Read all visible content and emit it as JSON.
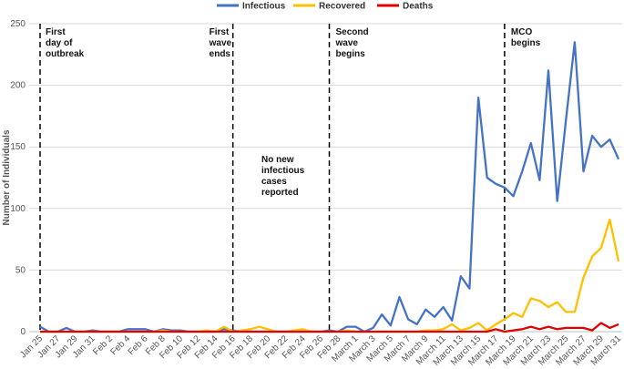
{
  "chart_data": {
    "type": "line",
    "ylabel": "Number of Individuals",
    "categories": [
      "Jan 25",
      null,
      "Jan 27",
      null,
      "Jan 29",
      null,
      "Jan 31",
      null,
      "Feb 2",
      null,
      "Feb 4",
      null,
      "Feb 6",
      null,
      "Feb 8",
      null,
      "Feb 10",
      null,
      "Feb 12",
      null,
      "Feb 14",
      null,
      "Feb 16",
      null,
      "Feb 18",
      null,
      "Feb 20",
      null,
      "Feb 22",
      null,
      "Feb 24",
      null,
      "Feb 26",
      null,
      "Feb 28",
      null,
      "March 1",
      null,
      "March 3",
      null,
      "March 5",
      null,
      "March 7",
      null,
      "March 9",
      null,
      "March 11",
      null,
      "March 13",
      null,
      "March 15",
      null,
      "March 17",
      null,
      "March 19",
      null,
      "March 21",
      null,
      "March 23",
      null,
      "March 25",
      null,
      "March 27",
      null,
      "March 29",
      null,
      "March 31"
    ],
    "series": [
      {
        "name": "Infectious",
        "color": "#4472c4",
        "values": [
          4,
          0,
          0,
          3,
          0,
          0,
          1,
          0,
          0,
          0,
          2,
          2,
          2,
          0,
          2,
          1,
          1,
          0,
          0,
          0,
          0,
          2,
          1,
          0,
          0,
          0,
          0,
          0,
          0,
          0,
          0,
          0,
          0,
          1,
          0,
          4,
          4,
          0,
          3,
          14,
          5,
          28,
          10,
          6,
          18,
          12,
          20,
          9,
          45,
          35,
          190,
          125,
          120,
          117,
          110,
          130,
          153,
          123,
          212,
          106,
          172,
          235,
          130,
          159,
          150,
          156,
          140
        ]
      },
      {
        "name": "Recovered",
        "color": "#ffc000",
        "values": [
          0,
          0,
          0,
          0,
          0,
          0,
          0,
          0,
          0,
          0,
          0,
          0,
          0,
          0,
          1,
          0,
          0,
          0,
          0,
          1,
          0,
          4,
          0,
          1,
          2,
          4,
          2,
          0,
          0,
          1,
          2,
          0,
          0,
          0,
          0,
          1,
          0,
          0,
          0,
          0,
          0,
          0,
          0,
          0,
          1,
          1,
          2,
          6,
          1,
          3,
          7,
          1,
          6,
          10,
          15,
          12,
          27,
          25,
          20,
          24,
          16,
          16,
          44,
          61,
          68,
          91,
          57
        ]
      },
      {
        "name": "Deaths",
        "color": "#e00000",
        "values": [
          0,
          0,
          0,
          0,
          0,
          0,
          0,
          0,
          0,
          0,
          0,
          0,
          0,
          0,
          0,
          0,
          0,
          0,
          0,
          0,
          0,
          0,
          0,
          0,
          0,
          0,
          0,
          0,
          0,
          0,
          0,
          0,
          0,
          0,
          0,
          0,
          0,
          0,
          0,
          0,
          0,
          0,
          0,
          0,
          0,
          0,
          0,
          0,
          0,
          0,
          0,
          0,
          2,
          0,
          1,
          2,
          4,
          2,
          4,
          2,
          3,
          3,
          3,
          1,
          7,
          3,
          6
        ]
      }
    ],
    "ylim": [
      0,
      250
    ],
    "yticks": [
      0,
      50,
      100,
      150,
      200,
      250
    ],
    "grid": true,
    "legend": "top",
    "event_markers": [
      {
        "x": 0,
        "lines": [
          "First",
          "day of",
          "outbreak"
        ]
      },
      {
        "x": 22,
        "lines": [
          "First",
          "wave",
          "ends"
        ]
      },
      {
        "x": 33,
        "lines": [
          "Second",
          "wave",
          "begins"
        ]
      },
      {
        "x": 53,
        "lines": [
          "MCO",
          "begins"
        ]
      }
    ],
    "notes": [
      {
        "lines": [
          "No new",
          "infectious",
          "cases",
          "reported"
        ]
      }
    ]
  }
}
